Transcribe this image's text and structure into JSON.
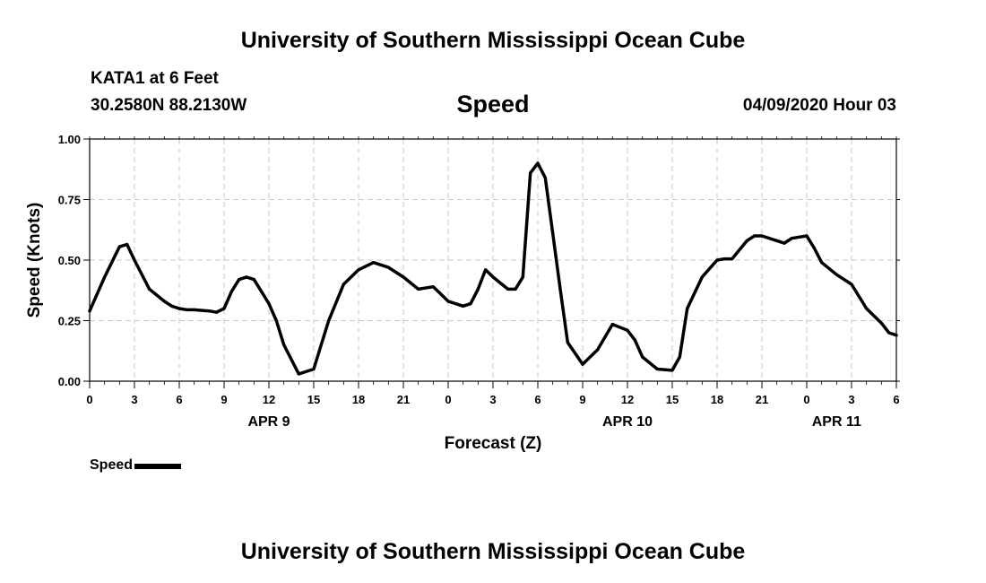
{
  "header": {
    "title": "University of Southern Mississippi Ocean Cube",
    "station": "KATA1 at 6 Feet",
    "coordinates": "30.2580N 88.2130W",
    "variable": "Speed",
    "issued": "04/09/2020 Hour 03"
  },
  "footer": {
    "title": "University of Southern Mississippi Ocean Cube"
  },
  "legend": {
    "label": "Speed"
  },
  "chart_data": {
    "type": "line",
    "title": "Speed",
    "xlabel": "Forecast (Z)",
    "ylabel": "Speed (Knots)",
    "ylim": [
      0,
      1
    ],
    "xlim_hours": [
      0,
      54
    ],
    "y_ticks": [
      "0.00",
      "0.25",
      "0.50",
      "0.75",
      "1.00"
    ],
    "x_tick_labels": [
      "0",
      "3",
      "6",
      "9",
      "12",
      "15",
      "18",
      "21",
      "0",
      "3",
      "6",
      "9",
      "12",
      "15",
      "18",
      "21",
      "0",
      "3",
      "6"
    ],
    "x_tick_step_hours": 3,
    "day_labels": [
      {
        "label": "APR 9",
        "hour": 12
      },
      {
        "label": "APR 10",
        "hour": 36
      },
      {
        "label": "APR 11",
        "hour": 50
      }
    ],
    "grid": true,
    "legend_position": "bottom-left",
    "series": [
      {
        "name": "Speed",
        "color": "#000000",
        "x": [
          0,
          1,
          2,
          2.5,
          3,
          4,
          5,
          5.5,
          6,
          6.5,
          7,
          8,
          8.5,
          9,
          9.5,
          10,
          10.5,
          11,
          11.5,
          12,
          12.5,
          13,
          14,
          15,
          15.5,
          16,
          17,
          18,
          19,
          20,
          21,
          22,
          23,
          23.5,
          24,
          25,
          25.5,
          26,
          26.5,
          27,
          28,
          28.5,
          29,
          29.5,
          30,
          30.5,
          31,
          31.5,
          32,
          33,
          34,
          35,
          36,
          36.5,
          37,
          38,
          39,
          39.5,
          40,
          41,
          42,
          42.5,
          43,
          44,
          44.5,
          45,
          46,
          46.5,
          47,
          48,
          48.5,
          49,
          50,
          51,
          52,
          53,
          53.5,
          54
        ],
        "values": [
          0.29,
          0.43,
          0.555,
          0.565,
          0.5,
          0.38,
          0.33,
          0.31,
          0.3,
          0.295,
          0.295,
          0.29,
          0.285,
          0.3,
          0.37,
          0.42,
          0.43,
          0.42,
          0.37,
          0.32,
          0.25,
          0.15,
          0.03,
          0.05,
          0.15,
          0.25,
          0.4,
          0.46,
          0.49,
          0.47,
          0.43,
          0.38,
          0.39,
          0.36,
          0.33,
          0.31,
          0.32,
          0.38,
          0.46,
          0.43,
          0.38,
          0.38,
          0.43,
          0.86,
          0.9,
          0.84,
          0.61,
          0.38,
          0.16,
          0.07,
          0.13,
          0.235,
          0.21,
          0.17,
          0.1,
          0.05,
          0.045,
          0.1,
          0.3,
          0.43,
          0.5,
          0.505,
          0.505,
          0.58,
          0.6,
          0.6,
          0.58,
          0.57,
          0.59,
          0.6,
          0.55,
          0.49,
          0.44,
          0.4,
          0.3,
          0.24,
          0.2,
          0.19
        ]
      }
    ]
  }
}
